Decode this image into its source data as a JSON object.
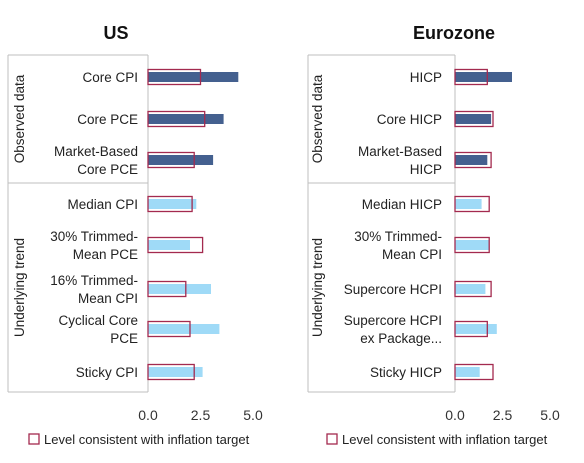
{
  "chart_data": [
    {
      "type": "bar",
      "title": "US",
      "orientation": "horizontal",
      "xlim": [
        0,
        5
      ],
      "xticks": [
        "0.0",
        "2.5",
        "5.0"
      ],
      "groups": [
        {
          "label": "Observed data",
          "categories": [
            0,
            1,
            2
          ]
        },
        {
          "label": "Underlying trend",
          "categories": [
            3,
            4,
            5,
            6,
            7
          ]
        }
      ],
      "categories": [
        [
          "Core CPI"
        ],
        [
          "Core PCE"
        ],
        [
          "Market-Based",
          "Core PCE"
        ],
        [
          "Median CPI"
        ],
        [
          "30% Trimmed-",
          "Mean PCE"
        ],
        [
          "16% Trimmed-",
          "Mean CPI"
        ],
        [
          "Cyclical Core",
          "PCE"
        ],
        [
          "Sticky CPI"
        ]
      ],
      "series": [
        {
          "values": [
            4.3,
            3.6,
            3.1,
            2.3,
            2.0,
            3.0,
            3.4,
            2.6
          ]
        },
        {
          "name": "Level consistent with inflation target",
          "values": [
            2.5,
            2.7,
            2.2,
            2.1,
            2.6,
            1.8,
            2.0,
            2.2
          ]
        }
      ],
      "legend": "bottom",
      "grid": false
    },
    {
      "type": "bar",
      "title": "Eurozone",
      "orientation": "horizontal",
      "xlim": [
        0,
        5
      ],
      "xticks": [
        "0.0",
        "2.5",
        "5.0"
      ],
      "groups": [
        {
          "label": "Observed data",
          "categories": [
            0,
            1,
            2
          ]
        },
        {
          "label": "Underlying trend",
          "categories": [
            3,
            4,
            5,
            6,
            7
          ]
        }
      ],
      "categories": [
        [
          "HICP"
        ],
        [
          "Core HICP"
        ],
        [
          "Market-Based",
          "HICP"
        ],
        [
          "Median HICP"
        ],
        [
          "30% Trimmed-",
          "Mean CPI"
        ],
        [
          "Supercore HCPI"
        ],
        [
          "Supercore HCPI",
          "ex Package..."
        ],
        [
          "Sticky HICP"
        ]
      ],
      "series": [
        {
          "values": [
            3.0,
            1.9,
            1.7,
            1.4,
            1.8,
            1.6,
            2.2,
            1.3
          ]
        },
        {
          "name": "Level consistent with inflation target",
          "values": [
            1.7,
            2.0,
            1.9,
            1.8,
            1.8,
            1.9,
            1.7,
            2.0
          ]
        }
      ],
      "legend": "bottom",
      "grid": false
    }
  ],
  "colors": {
    "observed_bar": "#44608f",
    "trend_bar": "#9fdaf7",
    "target_outline": "#a32a4f"
  }
}
